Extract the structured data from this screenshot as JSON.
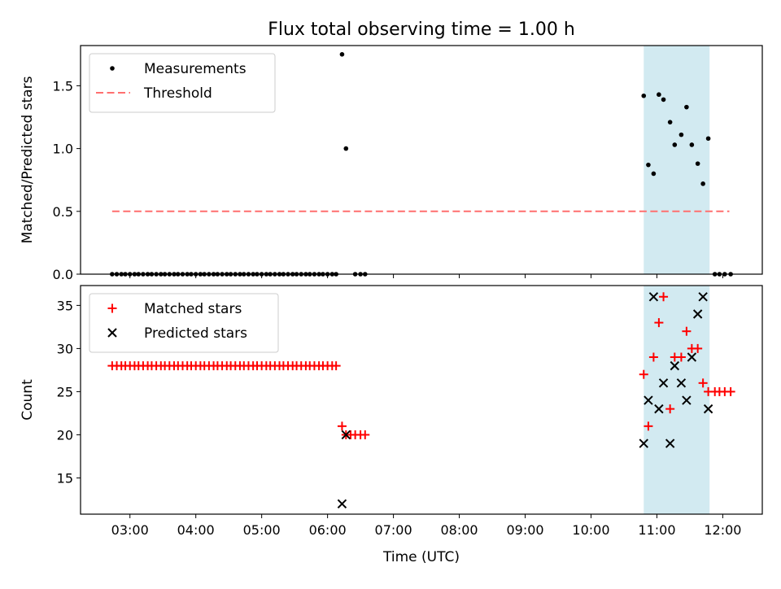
{
  "title": "Flux total observing time = 1.00 h",
  "xlabel": "Time (UTC)",
  "x_ticks": [
    "03:00",
    "04:00",
    "05:00",
    "06:00",
    "07:00",
    "08:00",
    "09:00",
    "10:00",
    "11:00",
    "12:00"
  ],
  "x_tick_hours": [
    3,
    4,
    5,
    6,
    7,
    8,
    9,
    10,
    11,
    12
  ],
  "xlim_hours": [
    2.25,
    12.6
  ],
  "highlight_span_hours": [
    10.8,
    11.8
  ],
  "colors": {
    "highlight": "#add8e6",
    "threshold": "#ff6f6f",
    "matched": "#ff0000",
    "predicted": "#000000",
    "measurement": "#000000"
  },
  "chart_data": [
    {
      "type": "scatter",
      "ylabel": "Matched/Predicted stars",
      "ylim": [
        0,
        1.82
      ],
      "y_ticks": [
        "0.0",
        "0.5",
        "1.0",
        "1.5"
      ],
      "y_tick_values": [
        0,
        0.5,
        1.0,
        1.5
      ],
      "legend_position": "top-left",
      "series": [
        {
          "name": "Measurements",
          "marker": "dot",
          "x_hours": [
            2.73,
            2.8,
            2.87,
            2.93,
            3.0,
            3.07,
            3.13,
            3.2,
            3.27,
            3.33,
            3.4,
            3.47,
            3.53,
            3.6,
            3.67,
            3.73,
            3.8,
            3.87,
            3.93,
            4.0,
            4.07,
            4.13,
            4.2,
            4.27,
            4.33,
            4.4,
            4.47,
            4.53,
            4.6,
            4.67,
            4.73,
            4.8,
            4.87,
            4.93,
            5.0,
            5.07,
            5.13,
            5.2,
            5.27,
            5.33,
            5.4,
            5.47,
            5.53,
            5.6,
            5.67,
            5.73,
            5.8,
            5.87,
            5.93,
            6.0,
            6.07,
            6.13,
            6.22,
            6.28,
            6.42,
            6.5,
            6.57,
            10.8,
            10.87,
            10.95,
            11.03,
            11.1,
            11.2,
            11.27,
            11.37,
            11.45,
            11.53,
            11.62,
            11.7,
            11.78,
            11.88,
            11.95,
            12.03,
            12.12
          ],
          "y": [
            0,
            0,
            0,
            0,
            0,
            0,
            0,
            0,
            0,
            0,
            0,
            0,
            0,
            0,
            0,
            0,
            0,
            0,
            0,
            0,
            0,
            0,
            0,
            0,
            0,
            0,
            0,
            0,
            0,
            0,
            0,
            0,
            0,
            0,
            0,
            0,
            0,
            0,
            0,
            0,
            0,
            0,
            0,
            0,
            0,
            0,
            0,
            0,
            0,
            0,
            0,
            0,
            1.75,
            1.0,
            0,
            0,
            0,
            1.42,
            0.87,
            0.8,
            1.43,
            1.39,
            1.21,
            1.03,
            1.11,
            1.33,
            1.03,
            0.88,
            0.72,
            1.08,
            0,
            0,
            0,
            0
          ]
        },
        {
          "name": "Threshold",
          "marker": "dashed-line",
          "x_hours": [
            2.73,
            12.1
          ],
          "y": [
            0.5,
            0.5
          ]
        }
      ]
    },
    {
      "type": "scatter",
      "ylabel": "Count",
      "ylim": [
        10.8,
        37.3
      ],
      "y_ticks": [
        "15",
        "20",
        "25",
        "30",
        "35"
      ],
      "y_tick_values": [
        15,
        20,
        25,
        30,
        35
      ],
      "legend_position": "top-left",
      "series": [
        {
          "name": "Matched stars",
          "marker": "plus",
          "x_hours": [
            2.73,
            2.8,
            2.87,
            2.93,
            3.0,
            3.07,
            3.13,
            3.2,
            3.27,
            3.33,
            3.4,
            3.47,
            3.53,
            3.6,
            3.67,
            3.73,
            3.8,
            3.87,
            3.93,
            4.0,
            4.07,
            4.13,
            4.2,
            4.27,
            4.33,
            4.4,
            4.47,
            4.53,
            4.6,
            4.67,
            4.73,
            4.8,
            4.87,
            4.93,
            5.0,
            5.07,
            5.13,
            5.2,
            5.27,
            5.33,
            5.4,
            5.47,
            5.53,
            5.6,
            5.67,
            5.73,
            5.8,
            5.87,
            5.93,
            6.0,
            6.07,
            6.13,
            6.22,
            6.28,
            6.35,
            6.42,
            6.5,
            6.57,
            10.8,
            10.87,
            10.95,
            11.03,
            11.1,
            11.2,
            11.27,
            11.37,
            11.45,
            11.53,
            11.62,
            11.7,
            11.78,
            11.88,
            11.95,
            12.03,
            12.12
          ],
          "y": [
            28,
            28,
            28,
            28,
            28,
            28,
            28,
            28,
            28,
            28,
            28,
            28,
            28,
            28,
            28,
            28,
            28,
            28,
            28,
            28,
            28,
            28,
            28,
            28,
            28,
            28,
            28,
            28,
            28,
            28,
            28,
            28,
            28,
            28,
            28,
            28,
            28,
            28,
            28,
            28,
            28,
            28,
            28,
            28,
            28,
            28,
            28,
            28,
            28,
            28,
            28,
            28,
            21,
            20,
            20,
            20,
            20,
            20,
            27,
            21,
            29,
            33,
            36,
            23,
            29,
            29,
            32,
            30,
            30,
            26,
            25,
            25,
            25,
            25,
            25
          ]
        },
        {
          "name": "Predicted stars",
          "marker": "x",
          "x_hours": [
            6.22,
            6.28,
            10.8,
            10.87,
            10.95,
            11.03,
            11.1,
            11.2,
            11.27,
            11.37,
            11.45,
            11.53,
            11.62,
            11.7,
            11.78
          ],
          "y": [
            12,
            20,
            19,
            24,
            36,
            23,
            26,
            19,
            28,
            26,
            24,
            29,
            34,
            36,
            23
          ]
        }
      ]
    }
  ]
}
